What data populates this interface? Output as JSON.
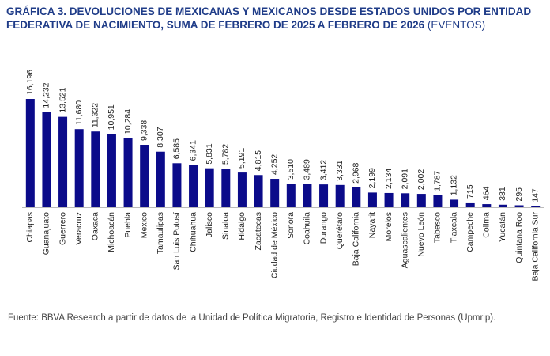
{
  "chart_data": {
    "type": "bar",
    "title": "GRÁFICA 3. DEVOLUCIONES DE MEXICANAS Y MEXICANOS DESDE ESTADOS UNIDOS POR ENTIDAD FEDERATIVA DE NACIMIENTO, SUMA DE FEBRERO DE 2025 A FEBRERO DE 2026",
    "subtitle": "(EVENTOS)",
    "source": "Fuente: BBVA Research a partir de datos de la Unidad de Política Migratoria, Registro e Identidad de Personas (Upmrip).",
    "color": "#0b0b8a",
    "categories": [
      "Chiapas",
      "Guanajuato",
      "Guerrero",
      "Veracruz",
      "Oaxaca",
      "Michoacán",
      "Puebla",
      "México",
      "Tamaulipas",
      "San Luis Potosí",
      "Chihuahua",
      "Jalisco",
      "Sinaloa",
      "Hidalgo",
      "Zacatecas",
      "Ciudad de México",
      "Sonora",
      "Coahuila",
      "Durango",
      "Querétaro",
      "Baja California",
      "Nayarit",
      "Morelos",
      "Aguascalientes",
      "Nuevo León",
      "Tabasco",
      "Tlaxcala",
      "Campeche",
      "Colima",
      "Yucatán",
      "Quintana Roo",
      "Baja California Sur"
    ],
    "values": [
      16196,
      14232,
      13521,
      11680,
      11322,
      10951,
      10284,
      9338,
      8307,
      6585,
      6341,
      5831,
      5782,
      5191,
      4815,
      4252,
      3510,
      3489,
      3412,
      3331,
      2968,
      2199,
      2134,
      2091,
      2002,
      1787,
      1132,
      715,
      464,
      381,
      295,
      147
    ],
    "value_labels": [
      "16,196",
      "14,232",
      "13,521",
      "11,680",
      "11,322",
      "10,951",
      "10,284",
      "9,338",
      "8,307",
      "6,585",
      "6,341",
      "5,831",
      "5,782",
      "5,191",
      "4,815",
      "4,252",
      "3,510",
      "3,489",
      "3,412",
      "3,331",
      "2,968",
      "2,199",
      "2,134",
      "2,091",
      "2,002",
      "1,787",
      "1,132",
      "715",
      "464",
      "381",
      "295",
      "147"
    ]
  }
}
